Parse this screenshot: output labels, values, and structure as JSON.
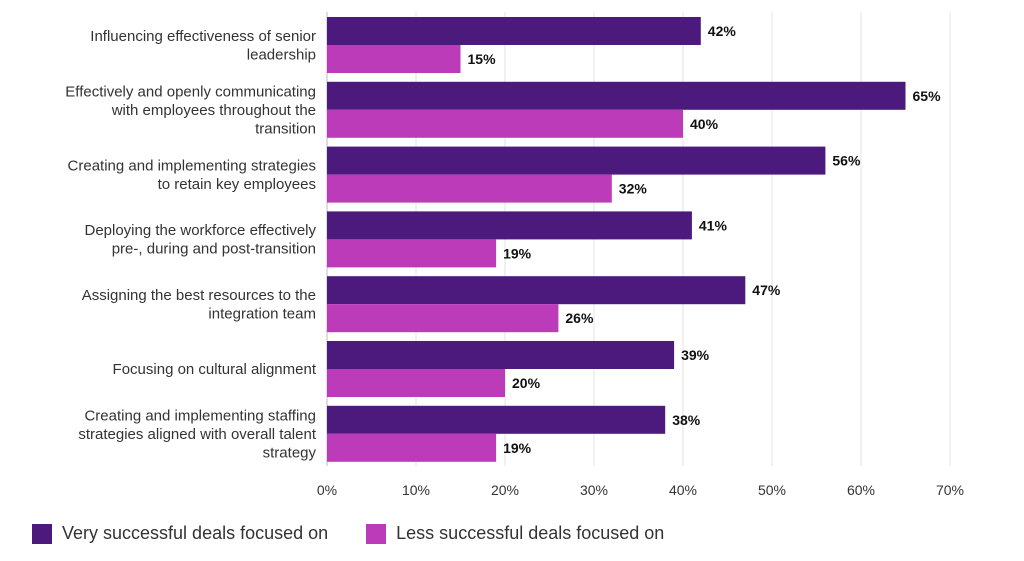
{
  "chart_data": {
    "type": "bar",
    "orientation": "horizontal",
    "categories": [
      [
        "Influencing effectiveness of  senior",
        "leadership"
      ],
      [
        "Effectively and openly communicating",
        "with employees throughout the",
        "transition"
      ],
      [
        "Creating and implementing strategies",
        "to retain key employees"
      ],
      [
        "Deploying the workforce effectively",
        "pre-, during and post-transition"
      ],
      [
        "Assigning the best resources  to the",
        "integration team"
      ],
      [
        "Focusing on cultural alignment"
      ],
      [
        "Creating and implementing staffing",
        "strategies aligned with overall talent",
        "strategy"
      ]
    ],
    "series": [
      {
        "name": "Very successful deals focused on",
        "color": "#4b1a7c",
        "values": [
          42,
          65,
          56,
          41,
          47,
          39,
          38
        ]
      },
      {
        "name": "Less successful deals focused on",
        "color": "#bb3bb8",
        "values": [
          15,
          40,
          32,
          19,
          26,
          20,
          19
        ]
      }
    ],
    "data_labels": [
      [
        "42%",
        "65%",
        "56%",
        "41%",
        "47%",
        "39%",
        "38%"
      ],
      [
        "15%",
        "40%",
        "32%",
        "19%",
        "26%",
        "20%",
        "19%"
      ]
    ],
    "xticks": [
      "0%",
      "10%",
      "20%",
      "30%",
      "40%",
      "50%",
      "60%",
      "70%"
    ],
    "xlim": [
      0,
      70
    ],
    "grid": true,
    "legend_position": "bottom-left"
  }
}
